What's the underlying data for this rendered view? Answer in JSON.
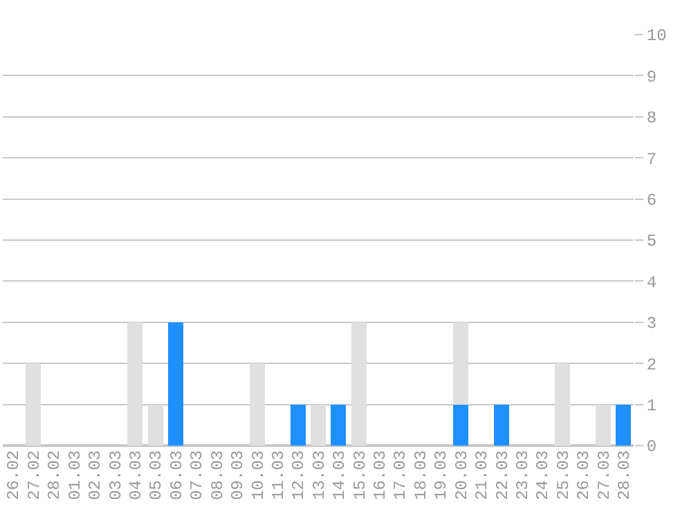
{
  "chart_data": {
    "type": "bar",
    "stacked": true,
    "categories": [
      "26.02",
      "27.02",
      "28.02",
      "01.03",
      "02.03",
      "03.03",
      "04.03",
      "05.03",
      "06.03",
      "07.03",
      "08.03",
      "09.03",
      "10.03",
      "11.03",
      "12.03",
      "13.03",
      "14.03",
      "15.03",
      "16.03",
      "17.03",
      "18.03",
      "19.03",
      "20.03",
      "21.03",
      "22.03",
      "23.03",
      "24.03",
      "25.03",
      "26.03",
      "27.03",
      "28.03"
    ],
    "series": [
      {
        "color": "#1e90ff",
        "values": [
          0,
          0,
          0,
          0,
          0,
          0,
          0,
          0,
          3,
          0,
          0,
          0,
          0,
          0,
          1,
          0,
          1,
          0,
          0,
          0,
          0,
          0,
          1,
          0,
          1,
          0,
          0,
          0,
          0,
          0,
          1
        ]
      },
      {
        "color": "#e0e0e0",
        "values": [
          0,
          2,
          0,
          0,
          0,
          0,
          3,
          1,
          0,
          0,
          0,
          0,
          2,
          0,
          0,
          1,
          0,
          3,
          0,
          0,
          0,
          0,
          2,
          0,
          0,
          0,
          0,
          2,
          0,
          1,
          0
        ]
      }
    ],
    "ylim": [
      0,
      10
    ],
    "yticks": [
      0,
      1,
      2,
      3,
      4,
      5,
      6,
      7,
      8,
      9,
      10
    ],
    "grid": "y",
    "legend": false
  }
}
